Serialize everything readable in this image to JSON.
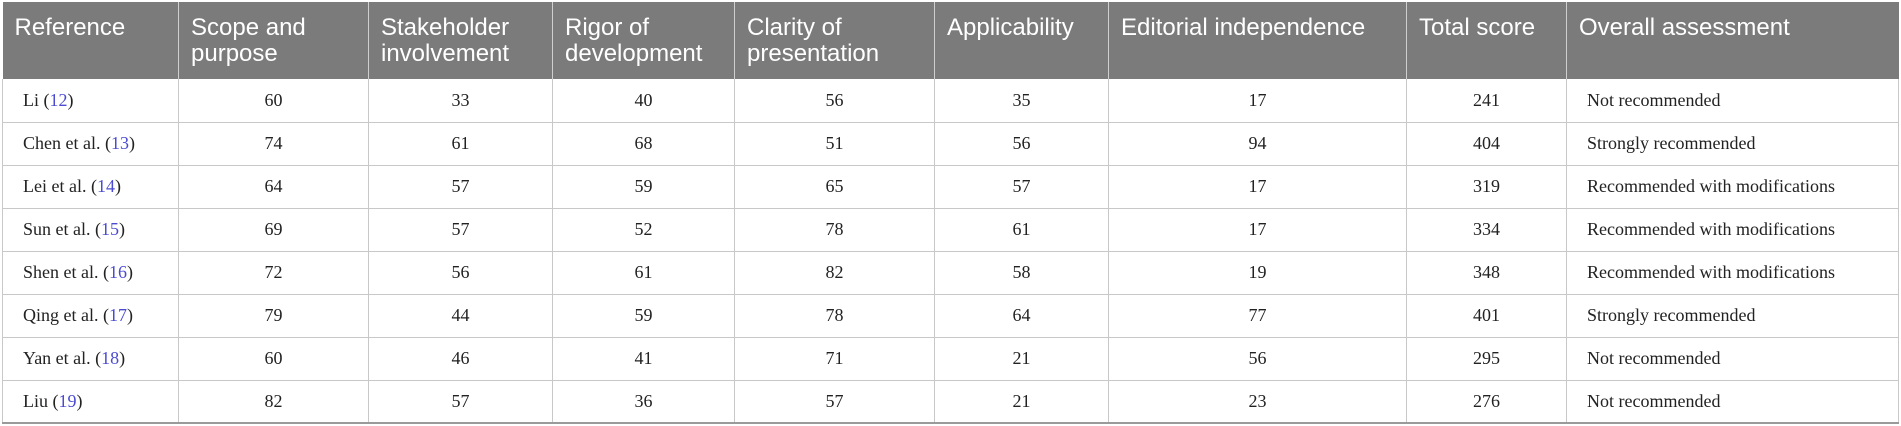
{
  "headers": [
    "Reference",
    "Scope and purpose",
    "Stakeholder involvement",
    "Rigor of development",
    "Clarity of presentation",
    "Applicability",
    "Editorial independence",
    "Total score",
    "Overall assessment"
  ],
  "rows": [
    {
      "author": "Li",
      "ref": "12",
      "cells": [
        "60",
        "33",
        "40",
        "56",
        "35",
        "17",
        "241"
      ],
      "assessment": "Not recommended"
    },
    {
      "author": "Chen et al.",
      "ref": "13",
      "cells": [
        "74",
        "61",
        "68",
        "51",
        "56",
        "94",
        "404"
      ],
      "assessment": "Strongly recommended"
    },
    {
      "author": "Lei et al.",
      "ref": "14",
      "cells": [
        "64",
        "57",
        "59",
        "65",
        "57",
        "17",
        "319"
      ],
      "assessment": "Recommended with modifications"
    },
    {
      "author": "Sun et al.",
      "ref": "15",
      "cells": [
        "69",
        "57",
        "52",
        "78",
        "61",
        "17",
        "334"
      ],
      "assessment": "Recommended with modifications"
    },
    {
      "author": "Shen et al.",
      "ref": "16",
      "cells": [
        "72",
        "56",
        "61",
        "82",
        "58",
        "19",
        "348"
      ],
      "assessment": "Recommended with modifications"
    },
    {
      "author": "Qing et al.",
      "ref": "17",
      "cells": [
        "79",
        "44",
        "59",
        "78",
        "64",
        "77",
        "401"
      ],
      "assessment": "Strongly recommended"
    },
    {
      "author": "Yan et al.",
      "ref": "18",
      "cells": [
        "60",
        "46",
        "41",
        "71",
        "21",
        "56",
        "295"
      ],
      "assessment": "Not recommended"
    },
    {
      "author": "Liu",
      "ref": "19",
      "cells": [
        "82",
        "57",
        "36",
        "57",
        "21",
        "23",
        "276"
      ],
      "assessment": "Not recommended"
    }
  ],
  "colors": {
    "header_bg": "#7b7b7b",
    "header_text": "#ffffff",
    "ref_link": "#4b4bd1",
    "grid": "#c8c8c8"
  }
}
